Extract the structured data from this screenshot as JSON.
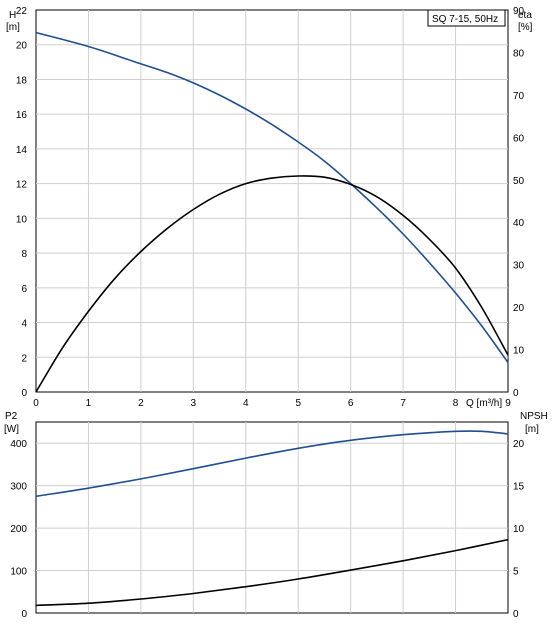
{
  "chart_data": [
    {
      "type": "line",
      "title": "SQ 7-15, 50Hz",
      "xlabel": "Q [m³/h]",
      "x_ticks": [
        "0",
        "1",
        "2",
        "3",
        "4",
        "5",
        "6",
        "7",
        "8",
        "9"
      ],
      "xlim": [
        0,
        9
      ],
      "y_left_label": [
        "H",
        "[m]"
      ],
      "y_left_ticks": [
        "0",
        "2",
        "4",
        "6",
        "8",
        "10",
        "12",
        "14",
        "16",
        "18",
        "20",
        "22"
      ],
      "ylim_left": [
        0,
        22
      ],
      "y_right_label": [
        "eta",
        "[%]"
      ],
      "y_right_ticks": [
        "0",
        "10",
        "20",
        "30",
        "40",
        "50",
        "60",
        "70",
        "80",
        "90"
      ],
      "ylim_right": [
        0,
        90
      ],
      "grid": true,
      "series": [
        {
          "axis": "left",
          "color": "#1f4e91",
          "x": [
            0,
            1,
            1.85,
            2.5,
            3,
            3.5,
            4,
            4.5,
            5,
            5.5,
            6,
            6.5,
            7,
            7.5,
            8,
            8.5,
            9
          ],
          "y": [
            20.7,
            19.9,
            19.05,
            18.4,
            17.8,
            17.1,
            16.3,
            15.4,
            14.4,
            13.3,
            12.0,
            10.6,
            9.1,
            7.45,
            5.7,
            3.8,
            1.7
          ]
        },
        {
          "axis": "right",
          "color": "#000000",
          "x": [
            0,
            0.5,
            1,
            1.5,
            2,
            2.5,
            3,
            3.5,
            4,
            4.5,
            5,
            5.5,
            6,
            6.5,
            7,
            7.5,
            8,
            8.5,
            9
          ],
          "y": [
            0,
            10.3,
            19,
            26.7,
            33.1,
            38.5,
            43,
            46.6,
            49.1,
            50.4,
            50.9,
            50.6,
            48.9,
            46,
            41.6,
            36,
            29.2,
            19.9,
            8.7
          ]
        }
      ]
    },
    {
      "type": "line",
      "xlim": [
        0,
        9
      ],
      "y_left_label": [
        "P2",
        "[W]"
      ],
      "y_left_ticks": [
        "0",
        "100",
        "200",
        "300",
        "400"
      ],
      "ylim_left": [
        0,
        450
      ],
      "y_right_label": [
        "NPSH",
        "[m]"
      ],
      "y_right_ticks": [
        "0",
        "5",
        "10",
        "15",
        "20"
      ],
      "ylim_right": [
        0,
        22.5
      ],
      "grid": true,
      "series": [
        {
          "axis": "left",
          "color": "#1f4e91",
          "x": [
            0,
            1,
            2,
            3,
            4,
            5,
            6,
            7,
            8,
            8.5,
            9
          ],
          "y": [
            275,
            294,
            316,
            340,
            365,
            388,
            407,
            420,
            428,
            428,
            422
          ]
        },
        {
          "axis": "left",
          "color": "#000000",
          "x": [
            0,
            1,
            2,
            3,
            4,
            5,
            6,
            7,
            8,
            9
          ],
          "y": [
            18,
            23,
            33,
            46,
            62,
            80,
            101,
            123,
            147,
            173
          ]
        }
      ]
    }
  ]
}
